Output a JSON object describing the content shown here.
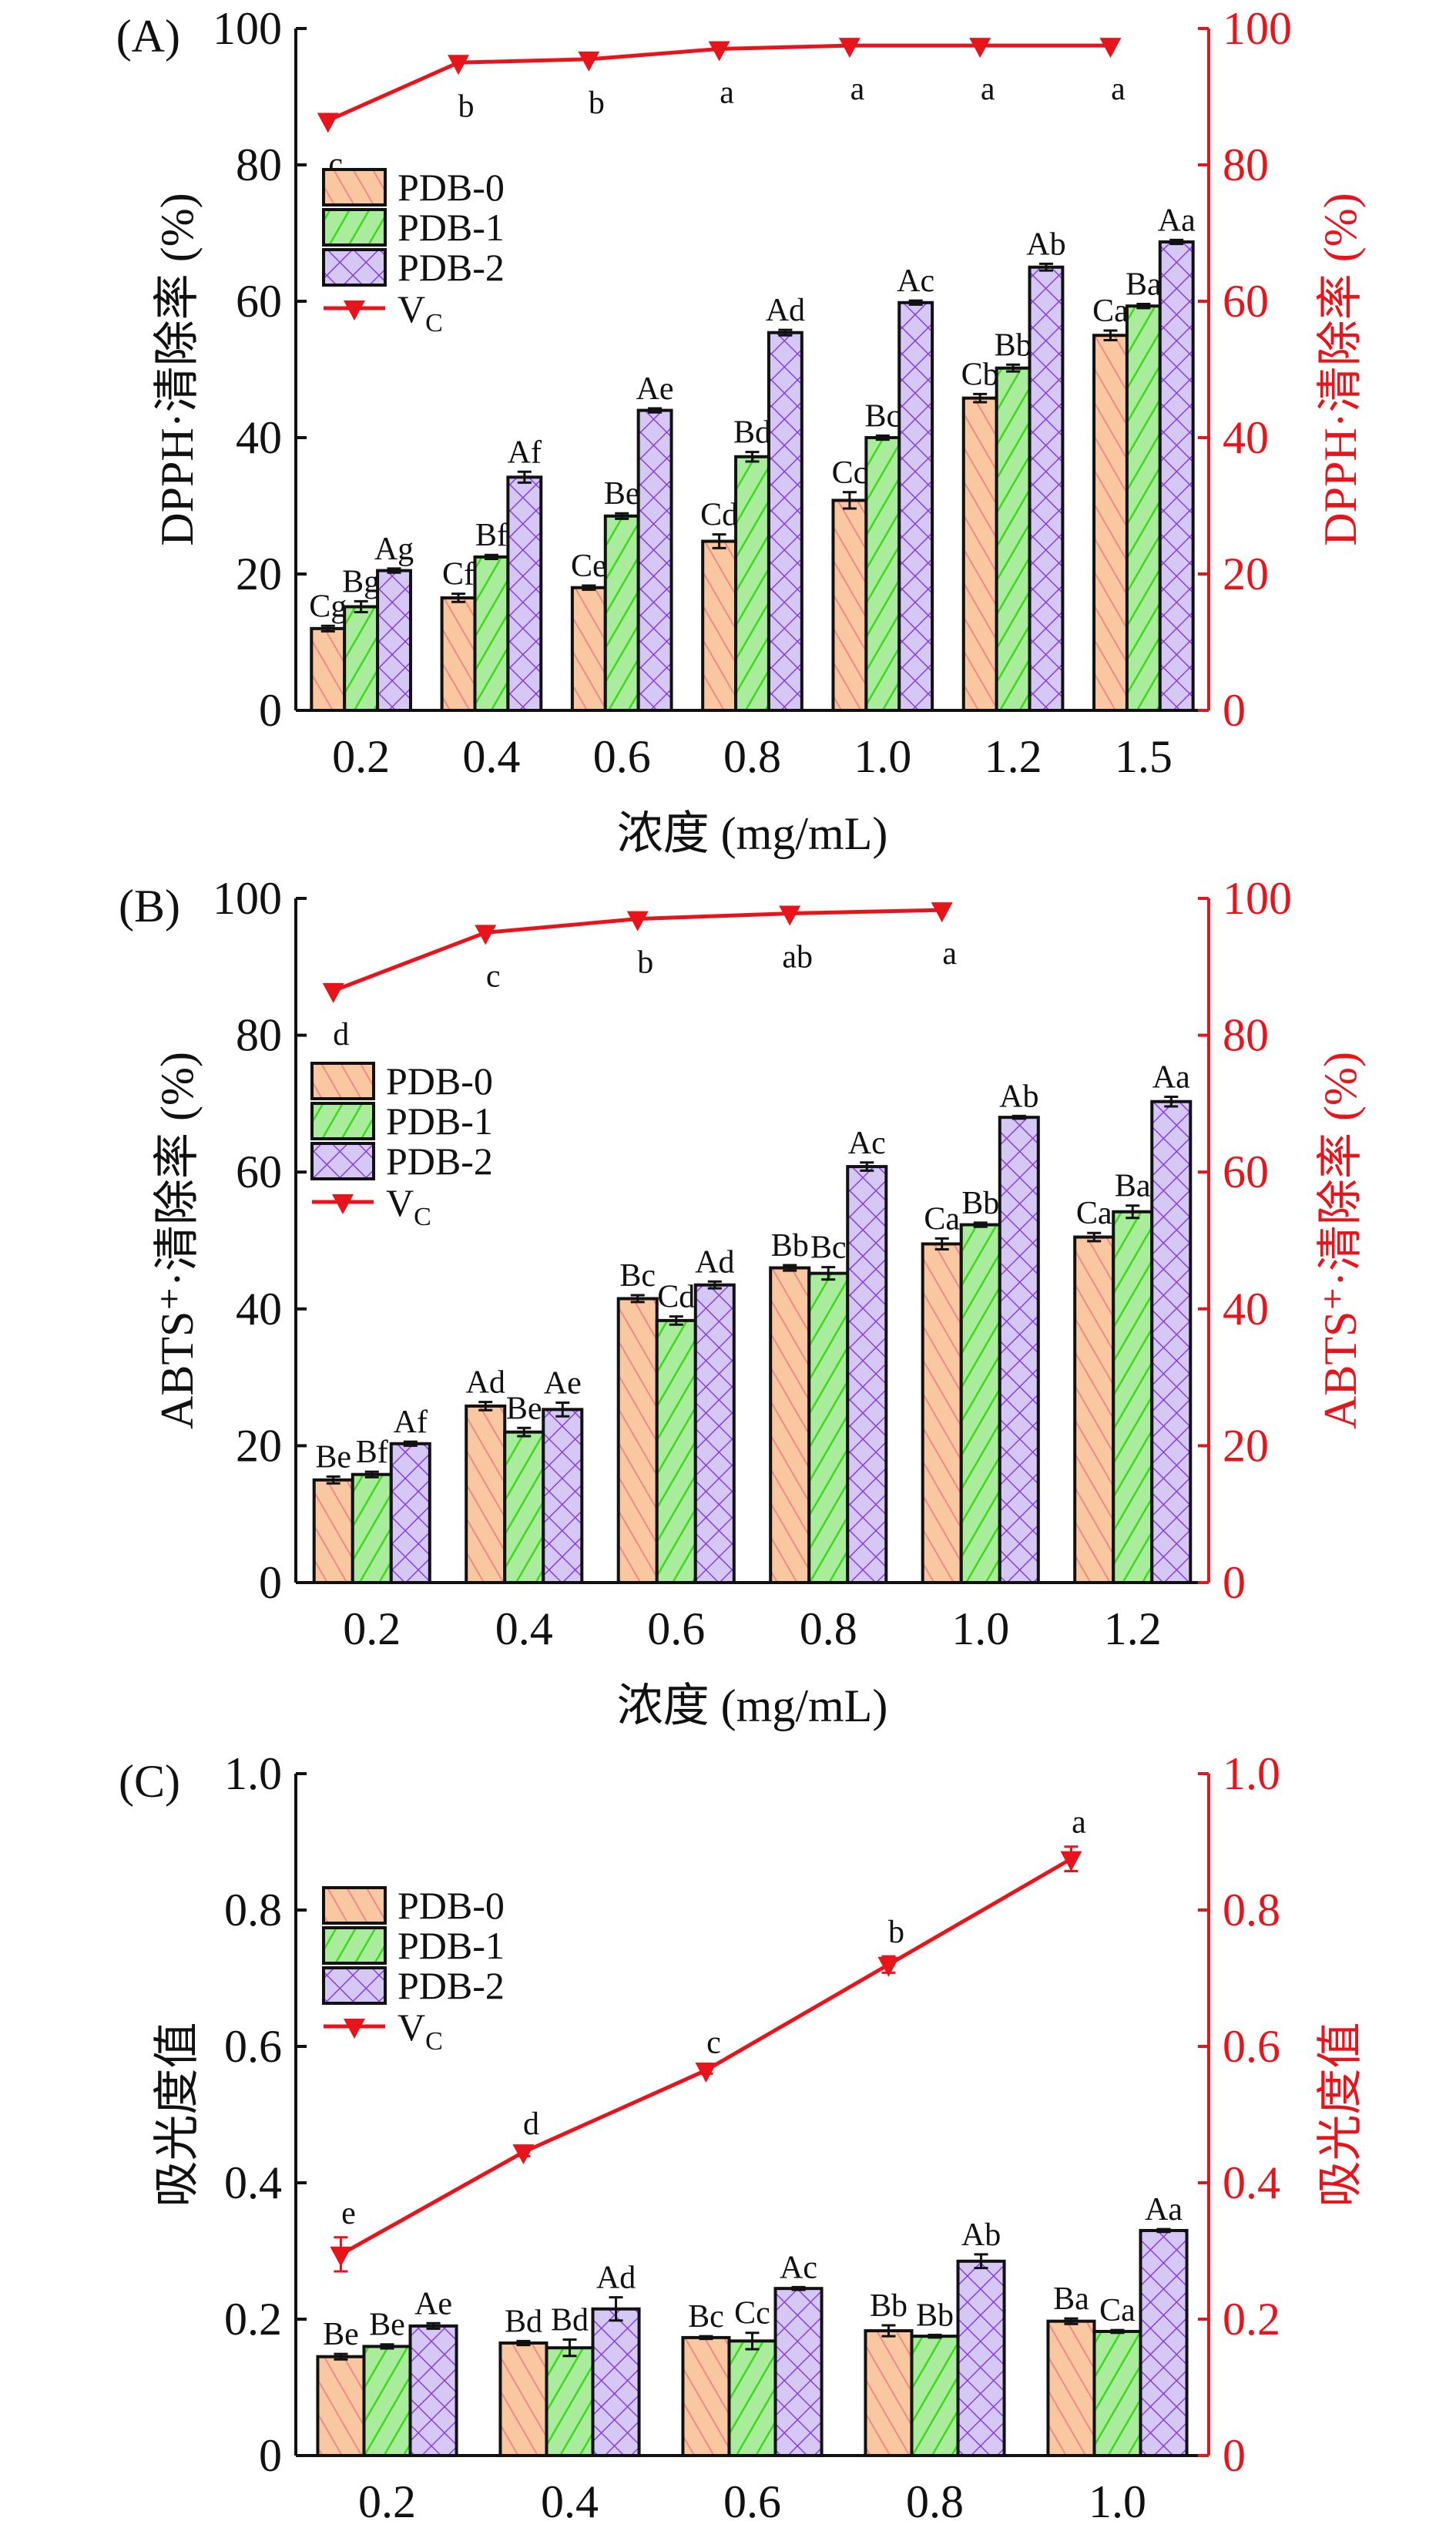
{
  "colors": {
    "pdb0": "#f9c7a0",
    "pdb0_stripe": "#f08a8a",
    "pdb1": "#a8ec9c",
    "pdb1_stripe": "#3fd81a",
    "pdb2": "#d6c8f4",
    "pdb2_stripe": "#8a3fe0",
    "vc": "#e8141c",
    "axis": "#000000",
    "right_axis": "#e8141c"
  },
  "legend": {
    "items": [
      "PDB-0",
      "PDB-1",
      "PDB-2"
    ],
    "vc_label": "V",
    "vc_sub": "C"
  },
  "chart_data": [
    {
      "panel": "(A)",
      "type": "bar",
      "ylabel": "DPPH·清除率 (%)",
      "ylabel_right": "DPPH·清除率 (%)",
      "xlabel": "浓度 (mg/mL)",
      "ylim": [
        0,
        100
      ],
      "yticks": [
        "0",
        "20",
        "40",
        "60",
        "80",
        "100"
      ],
      "categories": [
        "0.2",
        "0.4",
        "0.6",
        "0.8",
        "1.0",
        "1.2",
        "1.5"
      ],
      "series": [
        {
          "name": "PDB-0",
          "values": [
            12,
            16.5,
            18,
            24.8,
            30.8,
            45.8,
            55
          ],
          "errors": [
            0.4,
            0.6,
            0.3,
            1.0,
            1.2,
            0.6,
            0.7
          ],
          "labels": [
            "Cg",
            "Cf",
            "Ce",
            "Cd",
            "Cc",
            "Cb",
            "Ca"
          ]
        },
        {
          "name": "PDB-1",
          "values": [
            15.2,
            22.5,
            28.5,
            37.2,
            40,
            50.2,
            59.3
          ],
          "errors": [
            0.8,
            0.3,
            0.4,
            0.7,
            0.3,
            0.5,
            0.3
          ],
          "labels": [
            "Bg",
            "Bf",
            "Be",
            "Bd",
            "Bc",
            "Bb",
            "Ba"
          ]
        },
        {
          "name": "PDB-2",
          "values": [
            20.5,
            34.2,
            44,
            55.4,
            59.8,
            65,
            68.7
          ],
          "errors": [
            0.3,
            0.8,
            0.3,
            0.4,
            0.3,
            0.5,
            0.3
          ],
          "labels": [
            "Ag",
            "Af",
            "Ae",
            "Ad",
            "Ac",
            "Ab",
            "Aa"
          ]
        }
      ],
      "line": {
        "name": "VC",
        "values": [
          86.5,
          95,
          95.5,
          97,
          97.5,
          97.5,
          97.5
        ],
        "labels": [
          "c",
          "b",
          "b",
          "a",
          "a",
          "a",
          "a"
        ]
      }
    },
    {
      "panel": "(B)",
      "type": "bar",
      "ylabel": "ABTS⁺·清除率 (%)",
      "ylabel_right": "ABTS⁺·清除率 (%)",
      "xlabel": "浓度 (mg/mL)",
      "ylim": [
        0,
        100
      ],
      "yticks": [
        "0",
        "20",
        "40",
        "60",
        "80",
        "100"
      ],
      "categories": [
        "0.2",
        "0.4",
        "0.6",
        "0.8",
        "1.0",
        "1.2"
      ],
      "series": [
        {
          "name": "PDB-0",
          "values": [
            15,
            25.8,
            41.5,
            46,
            49.5,
            50.5
          ],
          "errors": [
            0.5,
            0.6,
            0.5,
            0.4,
            0.8,
            0.6
          ],
          "labels": [
            "Be",
            "Ad",
            "Bc",
            "Bb",
            "Ca",
            "Ca"
          ]
        },
        {
          "name": "PDB-1",
          "values": [
            15.8,
            22,
            38.3,
            45.2,
            52.3,
            54.2
          ],
          "errors": [
            0.4,
            0.6,
            0.6,
            0.9,
            0.3,
            0.9
          ],
          "labels": [
            "Bf",
            "Be",
            "Cd",
            "Bc",
            "Bb",
            "Ba"
          ]
        },
        {
          "name": "PDB-2",
          "values": [
            20.3,
            25.3,
            43.5,
            60.8,
            68,
            70.3
          ],
          "errors": [
            0.3,
            1.0,
            0.5,
            0.6,
            0.2,
            0.7
          ],
          "labels": [
            "Af",
            "Ae",
            "Ad",
            "Ac",
            "Ab",
            "Aa"
          ]
        }
      ],
      "line": {
        "name": "VC",
        "values": [
          86.5,
          95,
          97,
          97.8,
          98.3
        ],
        "labels": [
          "d",
          "c",
          "b",
          "ab",
          "a"
        ]
      }
    },
    {
      "panel": "(C)",
      "type": "bar",
      "ylabel": "吸光度值",
      "ylabel_right": "吸光度值",
      "xlabel": "浓度 (mg/mL)",
      "ylim": [
        0,
        1.0
      ],
      "yticks": [
        "0",
        "0.2",
        "0.4",
        "0.6",
        "0.8",
        "1.0"
      ],
      "categories": [
        "0.2",
        "0.4",
        "0.6",
        "0.8",
        "1.0"
      ],
      "series": [
        {
          "name": "PDB-0",
          "values": [
            0.145,
            0.165,
            0.173,
            0.183,
            0.197
          ],
          "errors": [
            0.004,
            0.003,
            0.002,
            0.008,
            0.004
          ],
          "labels": [
            "Be",
            "Bd",
            "Bc",
            "Bb",
            "Ba"
          ]
        },
        {
          "name": "PDB-1",
          "values": [
            0.16,
            0.158,
            0.168,
            0.175,
            0.182
          ],
          "errors": [
            0.003,
            0.012,
            0.012,
            0.002,
            0.002
          ],
          "labels": [
            "Be",
            "Bd",
            "Cc",
            "Bb",
            "Ca"
          ]
        },
        {
          "name": "PDB-2",
          "values": [
            0.19,
            0.215,
            0.245,
            0.285,
            0.33
          ],
          "errors": [
            0.004,
            0.017,
            0.002,
            0.01,
            0.002
          ],
          "labels": [
            "Ae",
            "Ad",
            "Ac",
            "Ab",
            "Aa"
          ]
        }
      ],
      "line": {
        "name": "VC",
        "values": [
          0.295,
          0.445,
          0.565,
          0.72,
          0.875
        ],
        "errors": [
          0.025,
          0.006,
          0.005,
          0.012,
          0.018
        ],
        "labels": [
          "e",
          "d",
          "c",
          "b",
          "a"
        ]
      }
    }
  ]
}
